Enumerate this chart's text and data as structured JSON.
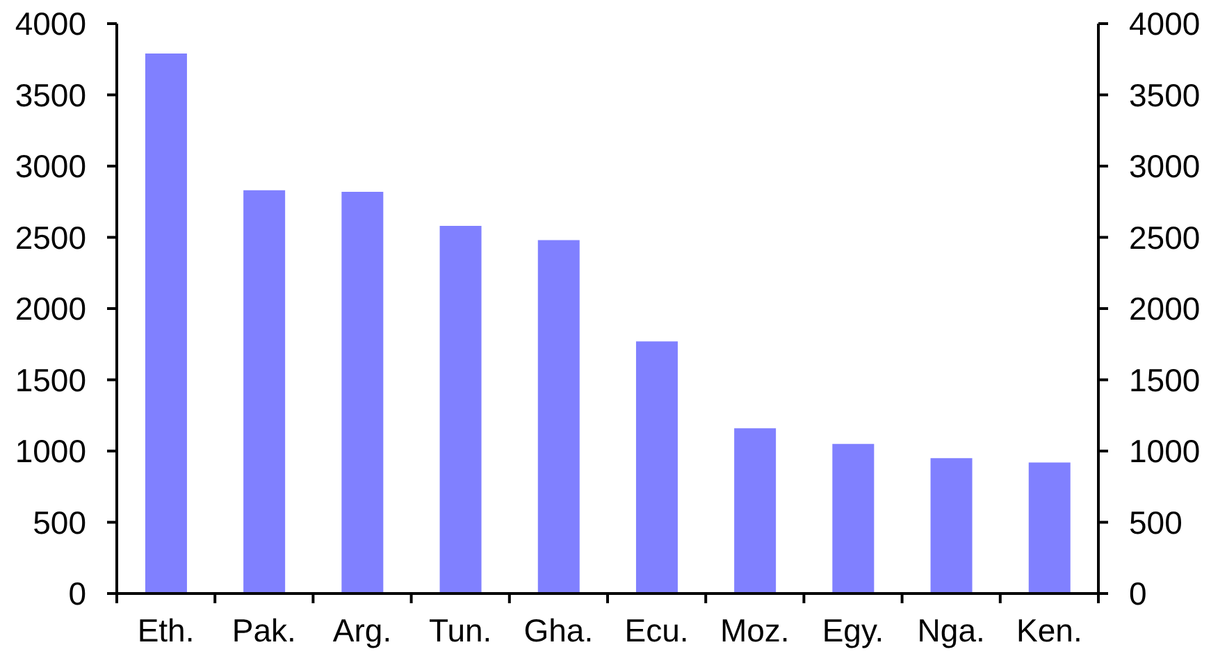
{
  "chart_data": {
    "type": "bar",
    "categories": [
      "Eth.",
      "Pak.",
      "Arg.",
      "Tun.",
      "Gha.",
      "Ecu.",
      "Moz.",
      "Egy.",
      "Nga.",
      "Ken."
    ],
    "values": [
      3790,
      2830,
      2820,
      2580,
      2480,
      1770,
      1160,
      1050,
      950,
      920
    ],
    "color": "#8080ff",
    "ylim": [
      0,
      4000
    ],
    "yticks": [
      0,
      500,
      1000,
      1500,
      2000,
      2500,
      3000,
      3500,
      4000
    ],
    "y2lim": [
      0,
      4000
    ],
    "y2ticks": [
      0,
      500,
      1000,
      1500,
      2000,
      2500,
      3000,
      3500,
      4000
    ]
  }
}
